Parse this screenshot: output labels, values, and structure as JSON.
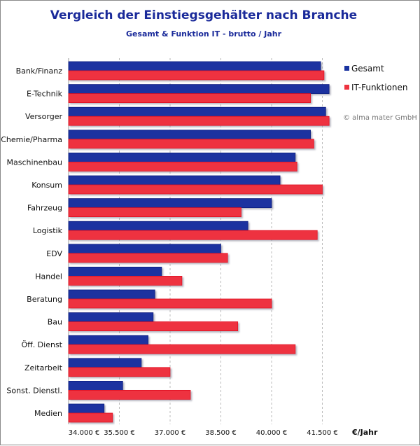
{
  "chart_data": {
    "type": "bar",
    "orientation": "horizontal",
    "title": "Vergleich der Einstiegsgehälter nach Branche",
    "subtitle": "Gesamt & Funktion IT - brutto / Jahr",
    "xlabel": "€/Jahr",
    "xlim": [
      34000,
      42500
    ],
    "xticks": [
      34000,
      35500,
      37000,
      38500,
      40000,
      41500
    ],
    "xtick_labels": [
      "34.000 €",
      "35.500 €",
      "37.000 €",
      "38.500 €",
      "40.000 €",
      "41.500 €"
    ],
    "grid": "vertical dashed",
    "legend_placement": "top-right",
    "categories": [
      "Bank/Finanz",
      "E-Technik",
      "Versorger",
      "Chemie/Pharma",
      "Maschinenbau",
      "Konsum",
      "Fahrzeug",
      "Logistik",
      "EDV",
      "Handel",
      "Beratung",
      "Bau",
      "Öff. Dienst",
      "Zeitarbeit",
      "Sonst. Dienstl.",
      "Medien"
    ],
    "series": [
      {
        "name": "Gesamt",
        "color": "#1a33a0",
        "values": [
          41450,
          41700,
          41600,
          41150,
          40700,
          40250,
          40000,
          39300,
          38500,
          36750,
          36550,
          36500,
          36350,
          36150,
          35600,
          35050
        ]
      },
      {
        "name": "IT-Funktionen",
        "color": "#ee3340",
        "values": [
          41550,
          41150,
          41700,
          41250,
          40750,
          41500,
          39100,
          41350,
          38700,
          37350,
          40000,
          39000,
          40700,
          37000,
          37600,
          35300
        ]
      }
    ],
    "copyright": "© alma mater GmbH"
  }
}
